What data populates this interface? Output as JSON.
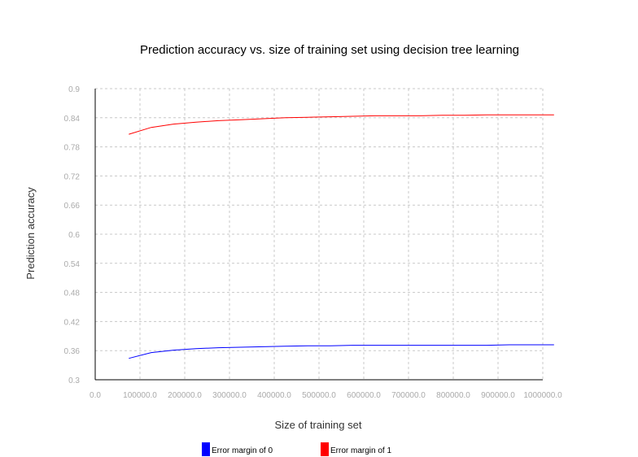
{
  "chart_data": {
    "type": "line",
    "title": "Prediction accuracy vs. size of training set using decision tree learning",
    "xlabel": "Size of training set",
    "ylabel": "Prediction accuracy",
    "xlim": [
      0,
      1000000
    ],
    "ylim": [
      0.3,
      0.9
    ],
    "x_ticks": [
      0,
      100000,
      200000,
      300000,
      400000,
      500000,
      600000,
      700000,
      800000,
      900000,
      1000000
    ],
    "x_tick_labels": [
      "0.0",
      "100000.0",
      "200000.0",
      "300000.0",
      "400000.0",
      "500000.0",
      "600000.0",
      "700000.0",
      "800000.0",
      "900000.0",
      "1000000.0"
    ],
    "y_ticks": [
      0.3,
      0.36,
      0.42,
      0.48,
      0.54,
      0.6,
      0.66,
      0.72,
      0.78,
      0.84,
      0.9
    ],
    "y_tick_labels": [
      "0.3",
      "0.36",
      "0.42",
      "0.48",
      "0.54",
      "0.6",
      "0.66",
      "0.72",
      "0.78",
      "0.84",
      "0.9"
    ],
    "grid": true,
    "legend_position": "bottom",
    "series": [
      {
        "name": "Error margin of 0",
        "color": "#0000ff",
        "x": [
          75000,
          125000,
          175000,
          225000,
          275000,
          325000,
          375000,
          425000,
          475000,
          525000,
          575000,
          625000,
          675000,
          725000,
          775000,
          825000,
          875000,
          925000,
          975000,
          1025000
        ],
        "y": [
          0.344,
          0.356,
          0.361,
          0.364,
          0.366,
          0.367,
          0.368,
          0.369,
          0.37,
          0.37,
          0.371,
          0.371,
          0.371,
          0.371,
          0.371,
          0.371,
          0.371,
          0.372,
          0.372,
          0.372
        ]
      },
      {
        "name": "Error margin of 1",
        "color": "#ff0000",
        "x": [
          75000,
          125000,
          175000,
          225000,
          275000,
          325000,
          375000,
          425000,
          475000,
          525000,
          575000,
          625000,
          675000,
          725000,
          775000,
          825000,
          875000,
          925000,
          975000,
          1025000
        ],
        "y": [
          0.806,
          0.82,
          0.827,
          0.831,
          0.834,
          0.836,
          0.838,
          0.84,
          0.841,
          0.842,
          0.843,
          0.844,
          0.844,
          0.844,
          0.845,
          0.845,
          0.846,
          0.846,
          0.846,
          0.846
        ]
      }
    ]
  }
}
